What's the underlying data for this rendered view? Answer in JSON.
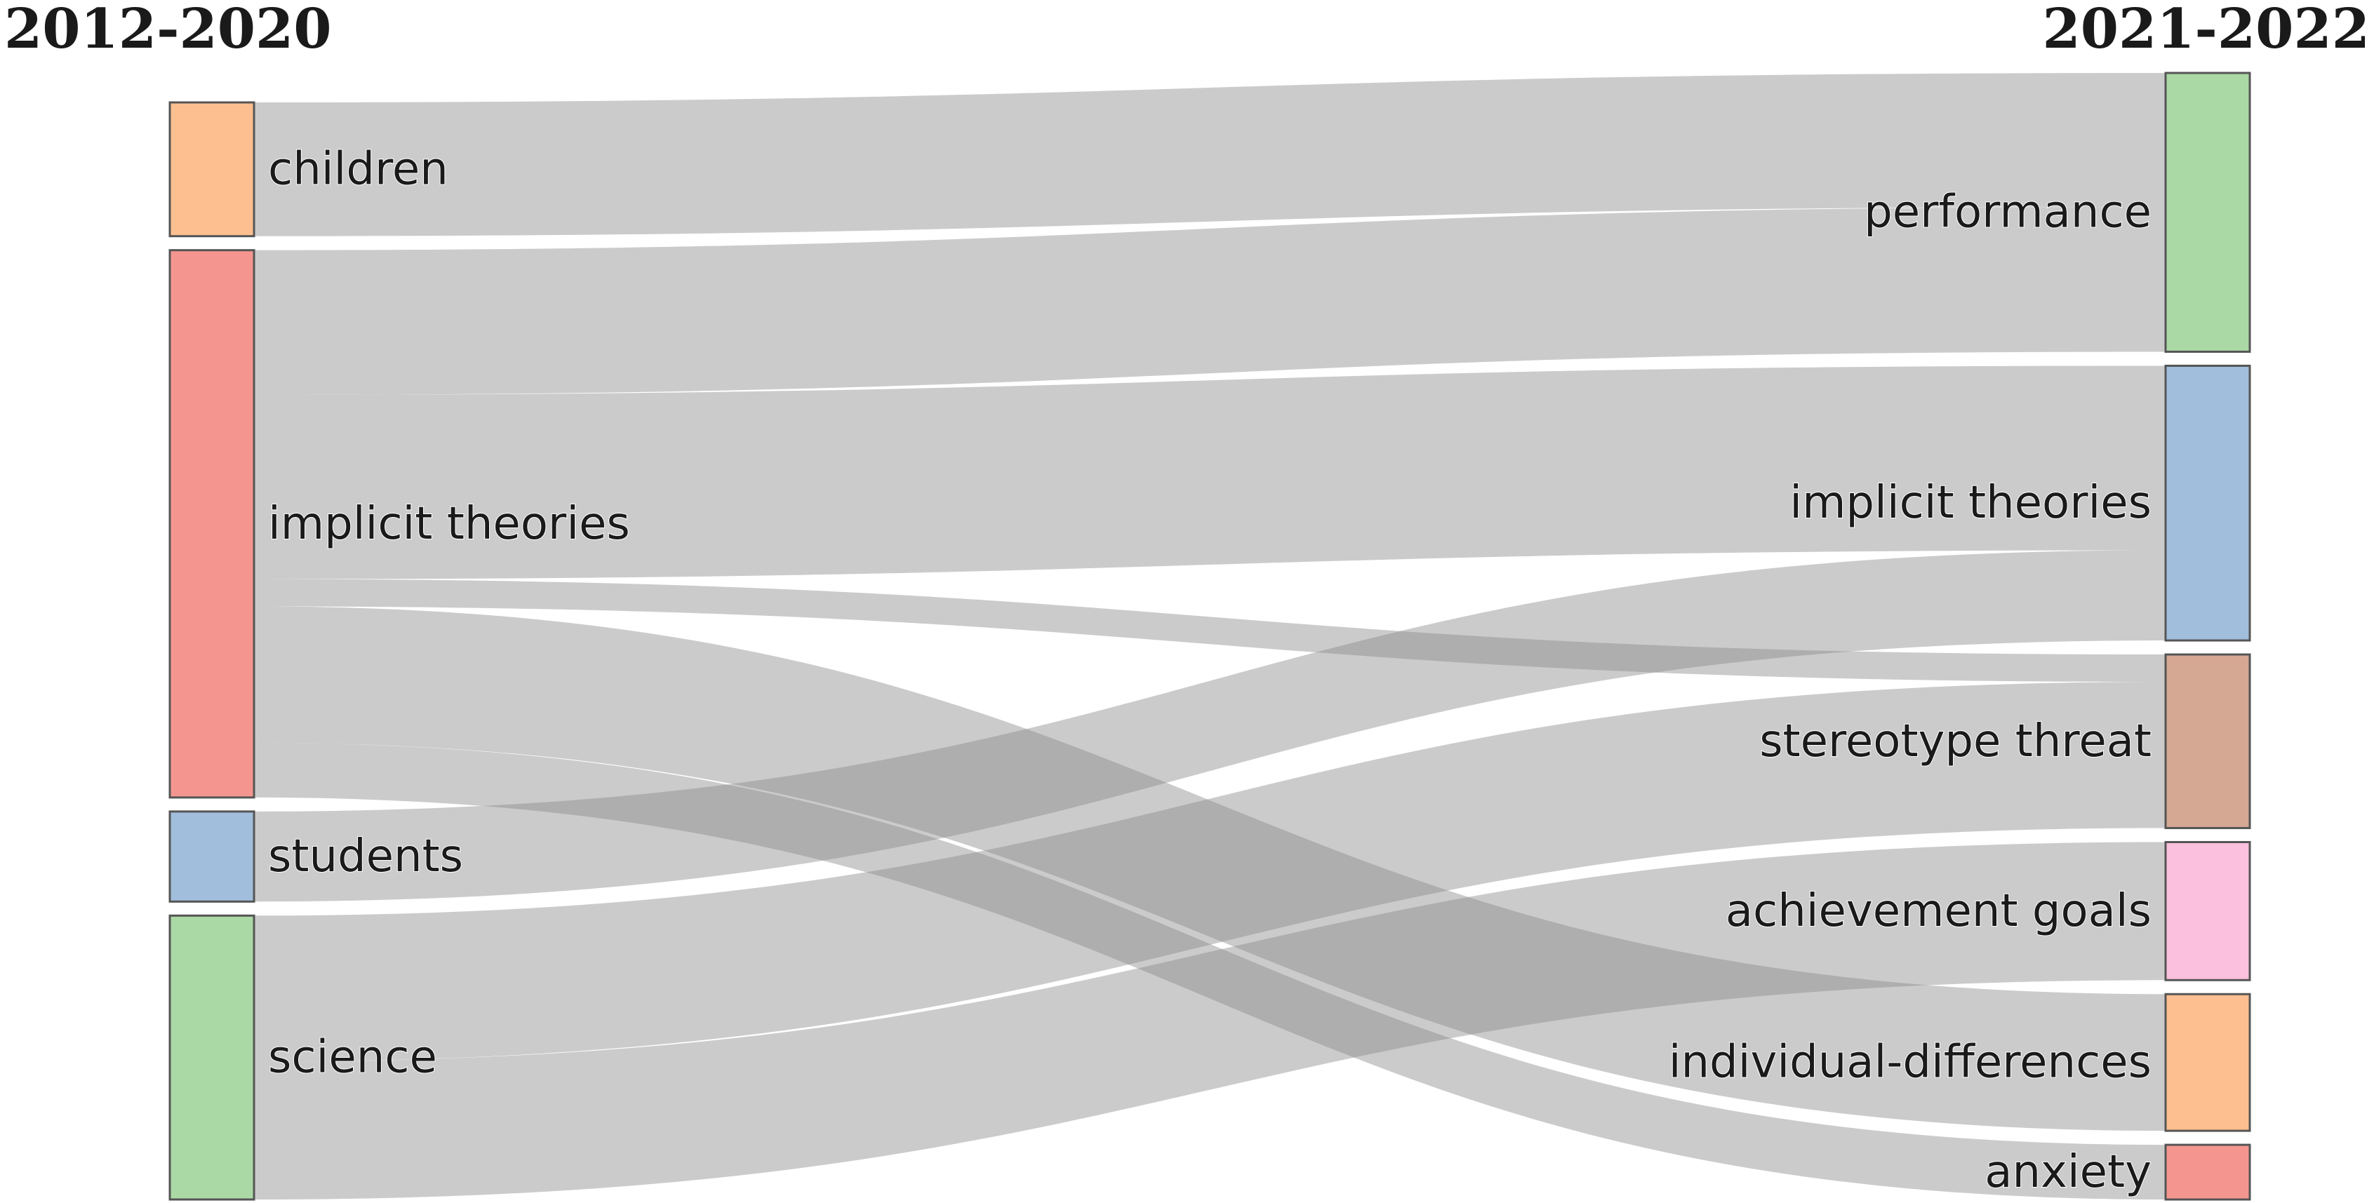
{
  "titles": {
    "left": "2012-2020",
    "right": "2021-2022"
  },
  "colors": {
    "link": "#8c8c8c",
    "node_border": "#555555"
  },
  "nodes": {
    "left": [
      {
        "id": "children_l",
        "label": "children",
        "color": "#fdbf8f"
      },
      {
        "id": "implicit_l",
        "label": "implicit theories",
        "color": "#f4968f"
      },
      {
        "id": "students_l",
        "label": "students",
        "color": "#a1bfdc"
      },
      {
        "id": "science_l",
        "label": "science",
        "color": "#abd9a5"
      }
    ],
    "right": [
      {
        "id": "performance_r",
        "label": "performance",
        "color": "#abd9a5"
      },
      {
        "id": "implicit_r",
        "label": "implicit theories",
        "color": "#a1bfdc"
      },
      {
        "id": "stereotype_r",
        "label": "stereotype threat",
        "color": "#d5a894"
      },
      {
        "id": "achievement_r",
        "label": "achievement goals",
        "color": "#fbc0de"
      },
      {
        "id": "individual_r",
        "label": "individual-differences",
        "color": "#fdbf8f"
      },
      {
        "id": "anxiety_r",
        "label": "anxiety",
        "color": "#f4968f"
      }
    ]
  },
  "links": [
    {
      "source": "children_l",
      "target": "performance_r",
      "value": 9.8
    },
    {
      "source": "implicit_l",
      "target": "performance_r",
      "value": 10.6
    },
    {
      "source": "implicit_l",
      "target": "implicit_r",
      "value": 13.5
    },
    {
      "source": "implicit_l",
      "target": "stereotype_r",
      "value": 2.0
    },
    {
      "source": "implicit_l",
      "target": "individual_r",
      "value": 10.0
    },
    {
      "source": "implicit_l",
      "target": "anxiety_r",
      "value": 4.0
    },
    {
      "source": "students_l",
      "target": "implicit_r",
      "value": 6.6
    },
    {
      "source": "science_l",
      "target": "stereotype_r",
      "value": 10.7
    },
    {
      "source": "science_l",
      "target": "achievement_r",
      "value": 10.1
    }
  ]
}
